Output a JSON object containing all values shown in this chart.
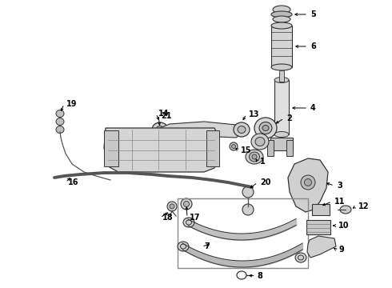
{
  "background_color": "#ffffff",
  "fig_width": 4.9,
  "fig_height": 3.6,
  "dpi": 100,
  "line_color": "#555555",
  "arrow_color": "#000000",
  "text_color": "#000000",
  "component_edge": "#333333",
  "component_fill": "#d8d8d8"
}
